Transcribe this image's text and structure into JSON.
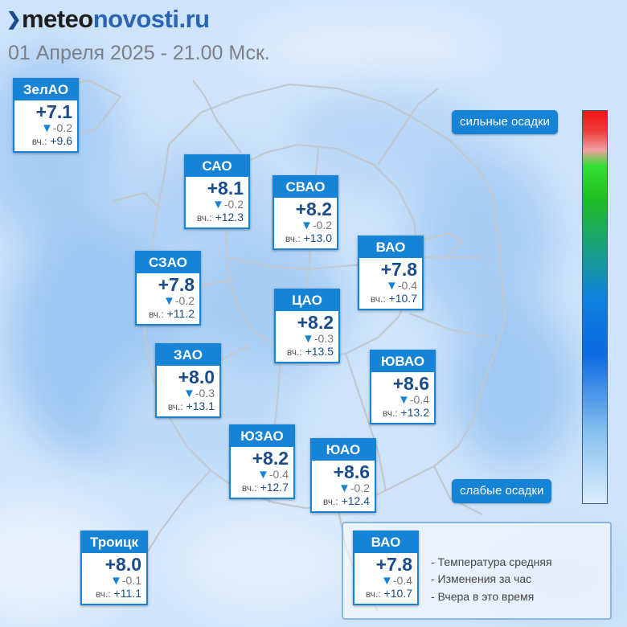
{
  "header": {
    "logo_part1": "meteo",
    "logo_part2": "novosti.ru",
    "subtitle": "01 Апреля 2025 - 21.00 Мск."
  },
  "colors": {
    "card_blue": "#1583d6",
    "text_dark_blue": "#1a4c8c",
    "change_triangle": "#1583d6"
  },
  "yesterday_label": "вч.:",
  "districts": [
    {
      "name": "ЗелАО",
      "temp": "+7.1",
      "change": "-0.2",
      "yesterday": "+9.6"
    },
    {
      "name": "САО",
      "temp": "+8.1",
      "change": "-0.2",
      "yesterday": "+12.3"
    },
    {
      "name": "СВАО",
      "temp": "+8.2",
      "change": "-0.2",
      "yesterday": "+13.0"
    },
    {
      "name": "ВАО",
      "temp": "+7.8",
      "change": "-0.4",
      "yesterday": "+10.7"
    },
    {
      "name": "СЗАО",
      "temp": "+7.8",
      "change": "-0.2",
      "yesterday": "+11.2"
    },
    {
      "name": "ЦАО",
      "temp": "+8.2",
      "change": "-0.3",
      "yesterday": "+13.5"
    },
    {
      "name": "ЗАО",
      "temp": "+8.0",
      "change": "-0.3",
      "yesterday": "+13.1"
    },
    {
      "name": "ЮВАО",
      "temp": "+8.6",
      "change": "-0.4",
      "yesterday": "+13.2"
    },
    {
      "name": "ЮЗАО",
      "temp": "+8.2",
      "change": "-0.4",
      "yesterday": "+12.7"
    },
    {
      "name": "ЮАО",
      "temp": "+8.6",
      "change": "-0.2",
      "yesterday": "+12.4"
    },
    {
      "name": "Троицк",
      "temp": "+8.0",
      "change": "-0.1",
      "yesterday": "+11.1"
    }
  ],
  "precip_scale": {
    "top_label": "сильные осадки",
    "bottom_label": "слабые осадки"
  },
  "legend": {
    "example": {
      "name": "ВАО",
      "temp": "+7.8",
      "change": "-0.4",
      "yesterday": "+10.7"
    },
    "notes": [
      "- Температура средняя",
      "- Изменения за час",
      "- Вчера в это время"
    ]
  }
}
